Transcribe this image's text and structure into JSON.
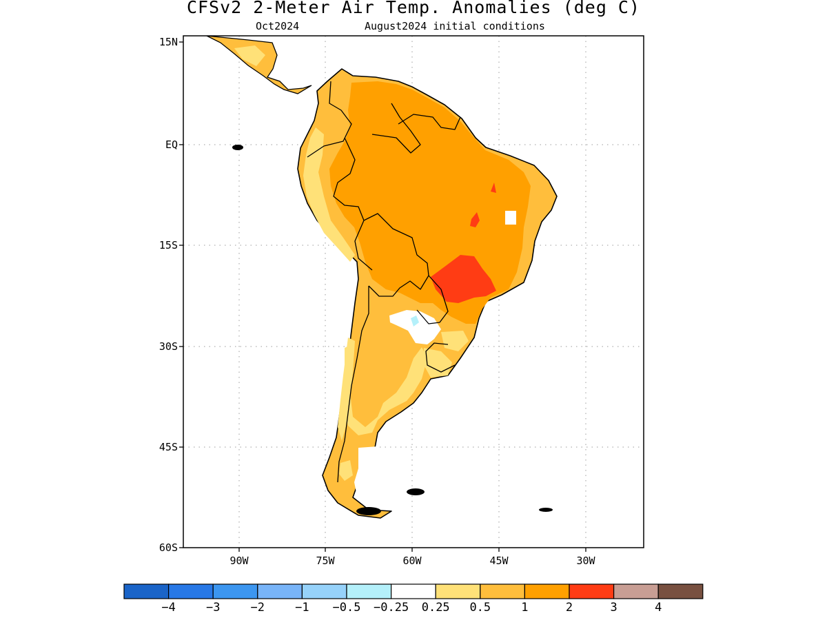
{
  "header": {
    "title": "CFSv2 2-Meter Air Temp. Anomalies (deg C)",
    "valid_month": "Oct2024",
    "initial_conditions": "August2024 initial conditions"
  },
  "map": {
    "lat_ticks": [
      "15N",
      "EQ",
      "15S",
      "30S",
      "45S",
      "60S"
    ],
    "lon_ticks": [
      "90W",
      "75W",
      "60W",
      "45W",
      "30W"
    ],
    "grid": "dotted",
    "region": "South America"
  },
  "colorbar": {
    "labels": [
      "-4",
      "-3",
      "-2",
      "-1",
      "-0.5",
      "-0.25",
      "0.25",
      "0.5",
      "1",
      "2",
      "3",
      "4"
    ],
    "colors": [
      "#1a64c8",
      "#2878e6",
      "#3c96f0",
      "#78b4f8",
      "#96d2fa",
      "#b4f0fa",
      "#ffffff",
      "#ffe178",
      "#ffbe3c",
      "#ffa000",
      "#ff3c14",
      "#c89e94",
      "#785040"
    ]
  }
}
